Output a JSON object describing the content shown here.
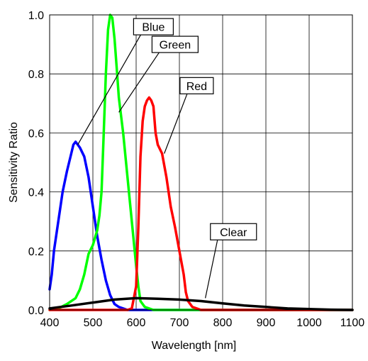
{
  "chart_data": {
    "type": "line",
    "title": "",
    "xlabel": "Wavelength [nm]",
    "ylabel": "Sensitivity Ratio",
    "xlim": [
      400,
      1100
    ],
    "ylim": [
      0,
      1.0
    ],
    "grid": true,
    "x_ticks": [
      "400",
      "500",
      "600",
      "700",
      "800",
      "900",
      "1000",
      "1100"
    ],
    "y_ticks": [
      "0.0",
      "0.2",
      "0.4",
      "0.6",
      "0.8",
      "1.0"
    ],
    "series": [
      {
        "name": "Blue",
        "color": "#0000ff",
        "points": [
          [
            400,
            0.07
          ],
          [
            405,
            0.12
          ],
          [
            410,
            0.2
          ],
          [
            420,
            0.3
          ],
          [
            430,
            0.4
          ],
          [
            440,
            0.47
          ],
          [
            450,
            0.53
          ],
          [
            455,
            0.56
          ],
          [
            460,
            0.57
          ],
          [
            465,
            0.56
          ],
          [
            470,
            0.55
          ],
          [
            480,
            0.52
          ],
          [
            490,
            0.45
          ],
          [
            500,
            0.35
          ],
          [
            510,
            0.25
          ],
          [
            520,
            0.17
          ],
          [
            530,
            0.1
          ],
          [
            540,
            0.05
          ],
          [
            550,
            0.02
          ],
          [
            560,
            0.01
          ],
          [
            580,
            0.0
          ],
          [
            700,
            0.0
          ],
          [
            1100,
            0.0
          ]
        ]
      },
      {
        "name": "Green",
        "color": "#00ff00",
        "points": [
          [
            400,
            0.0
          ],
          [
            420,
            0.005
          ],
          [
            440,
            0.02
          ],
          [
            460,
            0.04
          ],
          [
            470,
            0.07
          ],
          [
            480,
            0.12
          ],
          [
            490,
            0.19
          ],
          [
            500,
            0.22
          ],
          [
            510,
            0.27
          ],
          [
            515,
            0.32
          ],
          [
            520,
            0.4
          ],
          [
            525,
            0.6
          ],
          [
            530,
            0.8
          ],
          [
            535,
            0.95
          ],
          [
            540,
            1.0
          ],
          [
            545,
            0.99
          ],
          [
            550,
            0.92
          ],
          [
            555,
            0.82
          ],
          [
            560,
            0.72
          ],
          [
            570,
            0.6
          ],
          [
            580,
            0.45
          ],
          [
            590,
            0.3
          ],
          [
            600,
            0.15
          ],
          [
            605,
            0.08
          ],
          [
            610,
            0.03
          ],
          [
            620,
            0.01
          ],
          [
            640,
            0.0
          ],
          [
            1100,
            0.0
          ]
        ]
      },
      {
        "name": "Red",
        "color": "#ff0000",
        "points": [
          [
            400,
            0.0
          ],
          [
            580,
            0.0
          ],
          [
            590,
            0.005
          ],
          [
            600,
            0.08
          ],
          [
            605,
            0.28
          ],
          [
            610,
            0.52
          ],
          [
            615,
            0.64
          ],
          [
            620,
            0.69
          ],
          [
            625,
            0.71
          ],
          [
            630,
            0.72
          ],
          [
            635,
            0.71
          ],
          [
            640,
            0.69
          ],
          [
            645,
            0.6
          ],
          [
            650,
            0.56
          ],
          [
            660,
            0.53
          ],
          [
            670,
            0.45
          ],
          [
            680,
            0.35
          ],
          [
            690,
            0.28
          ],
          [
            700,
            0.2
          ],
          [
            710,
            0.12
          ],
          [
            715,
            0.06
          ],
          [
            720,
            0.03
          ],
          [
            730,
            0.01
          ],
          [
            750,
            0.0
          ],
          [
            1100,
            0.0
          ]
        ]
      },
      {
        "name": "Clear",
        "color": "#000000",
        "points": [
          [
            400,
            0.005
          ],
          [
            450,
            0.015
          ],
          [
            500,
            0.025
          ],
          [
            550,
            0.035
          ],
          [
            600,
            0.04
          ],
          [
            650,
            0.038
          ],
          [
            700,
            0.035
          ],
          [
            750,
            0.03
          ],
          [
            800,
            0.022
          ],
          [
            850,
            0.015
          ],
          [
            900,
            0.01
          ],
          [
            950,
            0.005
          ],
          [
            1000,
            0.003
          ],
          [
            1050,
            0.001
          ],
          [
            1100,
            0.0
          ]
        ]
      }
    ],
    "annotations": [
      {
        "text": "Blue",
        "series": "Blue",
        "x": 465,
        "y": 0.56,
        "box_x": 640,
        "box_y": 0.96
      },
      {
        "text": "Green",
        "series": "Green",
        "x": 560,
        "y": 0.67,
        "box_x": 690,
        "box_y": 0.9
      },
      {
        "text": "Red",
        "series": "Red",
        "x": 665,
        "y": 0.53,
        "box_x": 740,
        "box_y": 0.76
      },
      {
        "text": "Clear",
        "series": "Clear",
        "x": 760,
        "y": 0.04,
        "box_x": 825,
        "box_y": 0.265
      }
    ]
  }
}
